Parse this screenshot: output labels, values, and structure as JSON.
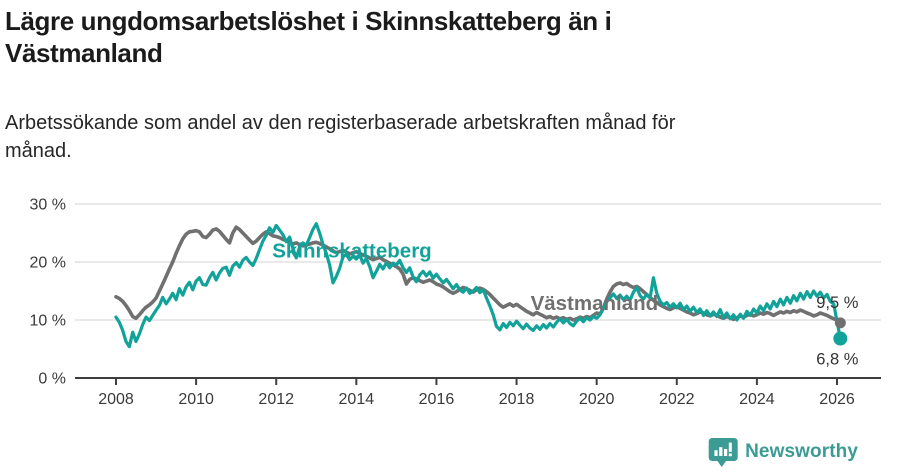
{
  "header": {
    "title_line1": "Lägre ungdomsarbetslöshet i Skinnskatteberg än i",
    "title_line2": "Västmanland",
    "subtitle_line1": "Arbetssökande som andel av den registerbaserade arbetskraften månad för",
    "subtitle_line2": "månad."
  },
  "footer": {
    "brand": "Newsworthy"
  },
  "colors": {
    "skinnskatteberg": "#11a29a",
    "vastmanland": "#707070",
    "grid": "#dcdcdc",
    "axis": "#3f3f3f",
    "tick_text": "#3a3a3a",
    "value_label": "#333333",
    "brand": "#3c9b94"
  },
  "chart_data": {
    "type": "line",
    "title": "Lägre ungdomsarbetslöshet i Skinnskatteberg än i Västmanland",
    "subtitle": "Arbetssökande som andel av den registerbaserade arbetskraften månad för månad.",
    "x_unit": "month",
    "x_start_year": 2008,
    "x_end_label": "2026",
    "x_ticks": [
      2008,
      2010,
      2012,
      2014,
      2016,
      2018,
      2020,
      2022,
      2024,
      2026
    ],
    "y_ticks": [
      {
        "value": 30,
        "label": "30 %"
      },
      {
        "value": 20,
        "label": "20 %"
      },
      {
        "value": 10,
        "label": "10 %"
      },
      {
        "value": 0,
        "label": "0 %"
      }
    ],
    "ylim": [
      0,
      30
    ],
    "grid": true,
    "legend_position": "inline-labels",
    "series": [
      {
        "name": "Västmanland",
        "color": "#707070",
        "end_label": "9,5 %",
        "end_value": 9.5,
        "values": [
          14.0,
          13.7,
          13.2,
          12.5,
          11.6,
          10.6,
          10.3,
          10.9,
          11.6,
          12.2,
          12.6,
          13.1,
          13.8,
          15.0,
          16.2,
          17.5,
          18.8,
          20.0,
          21.5,
          22.8,
          24.0,
          24.8,
          25.2,
          25.3,
          25.4,
          25.2,
          24.4,
          24.2,
          24.8,
          25.5,
          25.7,
          25.3,
          24.6,
          23.9,
          23.3,
          25.0,
          26.0,
          25.6,
          25.0,
          24.4,
          23.8,
          23.2,
          23.6,
          24.2,
          24.8,
          25.2,
          24.9,
          24.5,
          24.4,
          24.2,
          23.9,
          23.7,
          23.4,
          23.1,
          23.3,
          23.0,
          22.8,
          22.9,
          23.1,
          23.3,
          23.4,
          23.2,
          22.9,
          22.6,
          22.3,
          21.9,
          21.6,
          21.8,
          22.0,
          21.7,
          21.4,
          21.6,
          21.8,
          21.5,
          21.2,
          21.0,
          20.7,
          20.4,
          20.6,
          20.8,
          20.4,
          20.1,
          19.8,
          19.5,
          19.2,
          18.8,
          17.9,
          16.2,
          17.0,
          17.3,
          17.1,
          16.8,
          16.5,
          16.7,
          16.9,
          16.6,
          16.2,
          16.0,
          15.7,
          15.3,
          14.9,
          14.6,
          14.9,
          15.3,
          15.6,
          15.4,
          15.1,
          14.8,
          15.2,
          15.5,
          15.3,
          14.9,
          14.4,
          13.8,
          13.2,
          12.6,
          12.2,
          12.5,
          12.8,
          12.4,
          12.7,
          12.3,
          11.9,
          11.5,
          11.2,
          10.9,
          11.3,
          11.0,
          10.7,
          10.4,
          10.6,
          10.3,
          10.5,
          10.2,
          10.4,
          10.1,
          10.3,
          10.0,
          10.2,
          10.5,
          10.3,
          10.6,
          10.4,
          10.8,
          11.2,
          11.0,
          12.0,
          13.6,
          14.8,
          15.8,
          16.2,
          16.4,
          16.1,
          16.3,
          15.9,
          15.6,
          15.8,
          15.4,
          14.9,
          14.4,
          13.9,
          13.4,
          13.0,
          12.6,
          12.3,
          12.0,
          11.8,
          12.1,
          12.3,
          12.0,
          11.7,
          11.4,
          11.2,
          10.9,
          11.1,
          11.4,
          11.2,
          10.9,
          10.7,
          11.0,
          10.8,
          10.5,
          10.3,
          10.6,
          10.4,
          10.1,
          10.4,
          10.7,
          10.5,
          10.8,
          11.0,
          10.7,
          10.9,
          11.2,
          11.0,
          11.3,
          11.1,
          10.8,
          11.1,
          11.4,
          11.2,
          11.5,
          11.3,
          11.6,
          11.4,
          11.7,
          11.5,
          11.2,
          11.0,
          10.7,
          10.9,
          11.2,
          11.0,
          10.8,
          10.5,
          10.2,
          10.0,
          9.5
        ]
      },
      {
        "name": "Skinnskatteberg",
        "color": "#11a29a",
        "end_label": "6,8 %",
        "end_value": 6.8,
        "values": [
          10.5,
          9.6,
          8.2,
          6.3,
          5.4,
          7.9,
          6.3,
          7.6,
          9.2,
          10.5,
          9.9,
          10.8,
          11.7,
          12.5,
          13.9,
          12.8,
          13.6,
          14.6,
          13.5,
          15.4,
          14.3,
          15.7,
          16.5,
          15.2,
          16.7,
          17.3,
          16.1,
          16.0,
          17.3,
          18.2,
          16.9,
          18.1,
          18.9,
          19.1,
          17.7,
          19.3,
          19.9,
          19.1,
          20.3,
          20.8,
          20.0,
          19.4,
          20.6,
          22.1,
          23.6,
          24.6,
          25.9,
          25.1,
          26.3,
          25.5,
          24.7,
          23.5,
          24.3,
          22.3,
          20.7,
          22.6,
          23.3,
          22.9,
          24.2,
          25.6,
          26.6,
          25.0,
          23.0,
          21.5,
          19.5,
          16.4,
          17.5,
          18.9,
          20.9,
          21.3,
          20.4,
          21.0,
          20.5,
          21.2,
          19.8,
          20.6,
          19.2,
          17.3,
          18.4,
          19.6,
          18.8,
          19.9,
          19.0,
          19.8,
          19.5,
          20.3,
          19.0,
          18.2,
          19.0,
          17.4,
          16.6,
          17.8,
          18.4,
          17.6,
          18.3,
          17.2,
          17.9,
          17.1,
          16.4,
          17.0,
          16.2,
          15.4,
          16.1,
          15.2,
          14.8,
          15.5,
          14.6,
          15.0,
          15.6,
          14.7,
          15.2,
          13.8,
          12.4,
          10.9,
          8.9,
          8.3,
          9.4,
          8.7,
          9.6,
          9.0,
          9.8,
          9.1,
          8.5,
          9.3,
          8.6,
          8.2,
          9.0,
          8.4,
          9.2,
          8.6,
          9.4,
          8.8,
          9.6,
          10.2,
          9.5,
          10.1,
          9.4,
          9.0,
          9.8,
          10.3,
          9.7,
          10.4,
          10.0,
          10.6,
          10.3,
          10.9,
          12.0,
          13.2,
          13.8,
          14.5,
          13.7,
          14.3,
          13.5,
          14.1,
          13.4,
          14.8,
          15.6,
          14.2,
          13.6,
          14.4,
          13.8,
          17.3,
          14.6,
          13.2,
          12.6,
          13.0,
          12.2,
          12.8,
          12.1,
          12.9,
          11.8,
          12.4,
          11.5,
          12.2,
          11.3,
          11.9,
          10.8,
          11.6,
          10.7,
          11.4,
          10.6,
          11.8,
          10.4,
          11.2,
          10.2,
          10.9,
          10.0,
          11.0,
          10.3,
          11.5,
          10.8,
          11.9,
          11.2,
          12.4,
          11.6,
          12.8,
          11.9,
          13.2,
          12.3,
          13.6,
          12.6,
          13.9,
          12.9,
          14.2,
          13.3,
          14.6,
          13.6,
          14.9,
          13.9,
          15.0,
          14.1,
          14.8,
          13.8,
          14.4,
          13.2,
          12.8,
          9.8,
          6.8
        ]
      }
    ],
    "annotations": [
      {
        "text": "Skinnskatteberg",
        "color": "#11a29a",
        "x_year": 2011.9,
        "y_pct": 22.0
      },
      {
        "text": "Västmanland",
        "color": "#707070",
        "x_year": 2018.35,
        "y_pct": 12.9
      }
    ]
  }
}
